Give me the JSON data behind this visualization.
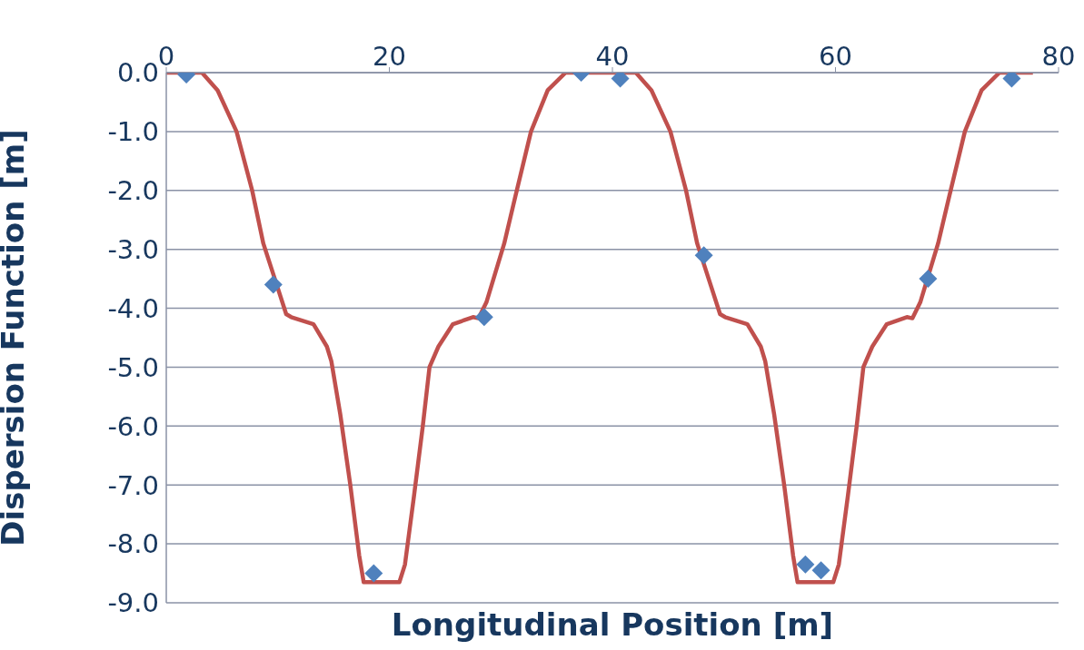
{
  "chart_data": {
    "type": "line",
    "xlabel": "Longitudinal Position [m]",
    "ylabel": "Dispersion Function [m]",
    "xlim": [
      0,
      80
    ],
    "xticks": [
      0,
      20,
      40,
      60,
      80
    ],
    "ylim": [
      -9,
      0
    ],
    "yticks": [
      {
        "value": 0,
        "label": "0.0"
      },
      {
        "value": -1,
        "label": "-1.0"
      },
      {
        "value": -2,
        "label": "-2.0"
      },
      {
        "value": -3,
        "label": "-3.0"
      },
      {
        "value": -4,
        "label": "-4.0"
      },
      {
        "value": -5,
        "label": "-5.0"
      },
      {
        "value": -6,
        "label": "-6.0"
      },
      {
        "value": -7,
        "label": "-7.0"
      },
      {
        "value": -8,
        "label": "-8.0"
      },
      {
        "value": -9,
        "label": "-9.0"
      }
    ],
    "grid": "y",
    "legend": false,
    "series": [
      {
        "color": "#c0504d",
        "marker": "none",
        "line_style": "solid",
        "x": [
          0,
          3.2,
          4.6,
          6.3,
          7.7,
          8.7,
          9.9,
          10.75,
          11.2,
          13.2,
          14.4,
          14.8,
          15.6,
          16.5,
          17.3,
          17.7,
          20.9,
          21.4,
          22.2,
          23.0,
          23.6,
          24.4,
          25.7,
          27.5,
          28.0,
          28.7,
          30.3,
          31.3,
          32.7,
          34.2,
          35.8,
          42.1,
          43.5,
          45.2,
          46.6,
          47.6,
          48.8,
          49.65,
          50.1,
          52.1,
          53.3,
          53.7,
          54.5,
          55.4,
          56.2,
          56.6,
          59.8,
          60.3,
          61.1,
          61.9,
          62.5,
          63.3,
          64.6,
          66.4,
          66.9,
          67.6,
          69.2,
          70.2,
          71.6,
          73.1,
          74.7,
          77.7
        ],
        "values": [
          0,
          0,
          -0.3,
          -1.0,
          -2.0,
          -2.9,
          -3.6,
          -4.1,
          -4.15,
          -4.27,
          -4.65,
          -4.9,
          -5.8,
          -7.0,
          -8.2,
          -8.65,
          -8.65,
          -8.35,
          -7.2,
          -6.0,
          -5.0,
          -4.65,
          -4.27,
          -4.15,
          -4.17,
          -3.9,
          -2.9,
          -2.1,
          -1.0,
          -0.3,
          0,
          0,
          -0.3,
          -1.0,
          -2.0,
          -2.9,
          -3.6,
          -4.1,
          -4.15,
          -4.27,
          -4.65,
          -4.9,
          -5.8,
          -7.0,
          -8.2,
          -8.65,
          -8.65,
          -8.35,
          -7.2,
          -6.0,
          -5.0,
          -4.65,
          -4.27,
          -4.15,
          -4.17,
          -3.9,
          -2.9,
          -2.1,
          -1.0,
          -0.3,
          0,
          0
        ]
      },
      {
        "type": "scatter",
        "color": "#4f81bd",
        "marker": "diamond",
        "x": [
          1.8,
          9.6,
          18.6,
          28.5,
          37.2,
          40.7,
          48.2,
          57.3,
          58.7,
          68.3,
          75.8
        ],
        "values": [
          -0.03,
          -3.6,
          -8.5,
          -4.15,
          0.0,
          -0.1,
          -3.1,
          -8.35,
          -8.45,
          -3.5,
          -0.1
        ]
      }
    ]
  }
}
